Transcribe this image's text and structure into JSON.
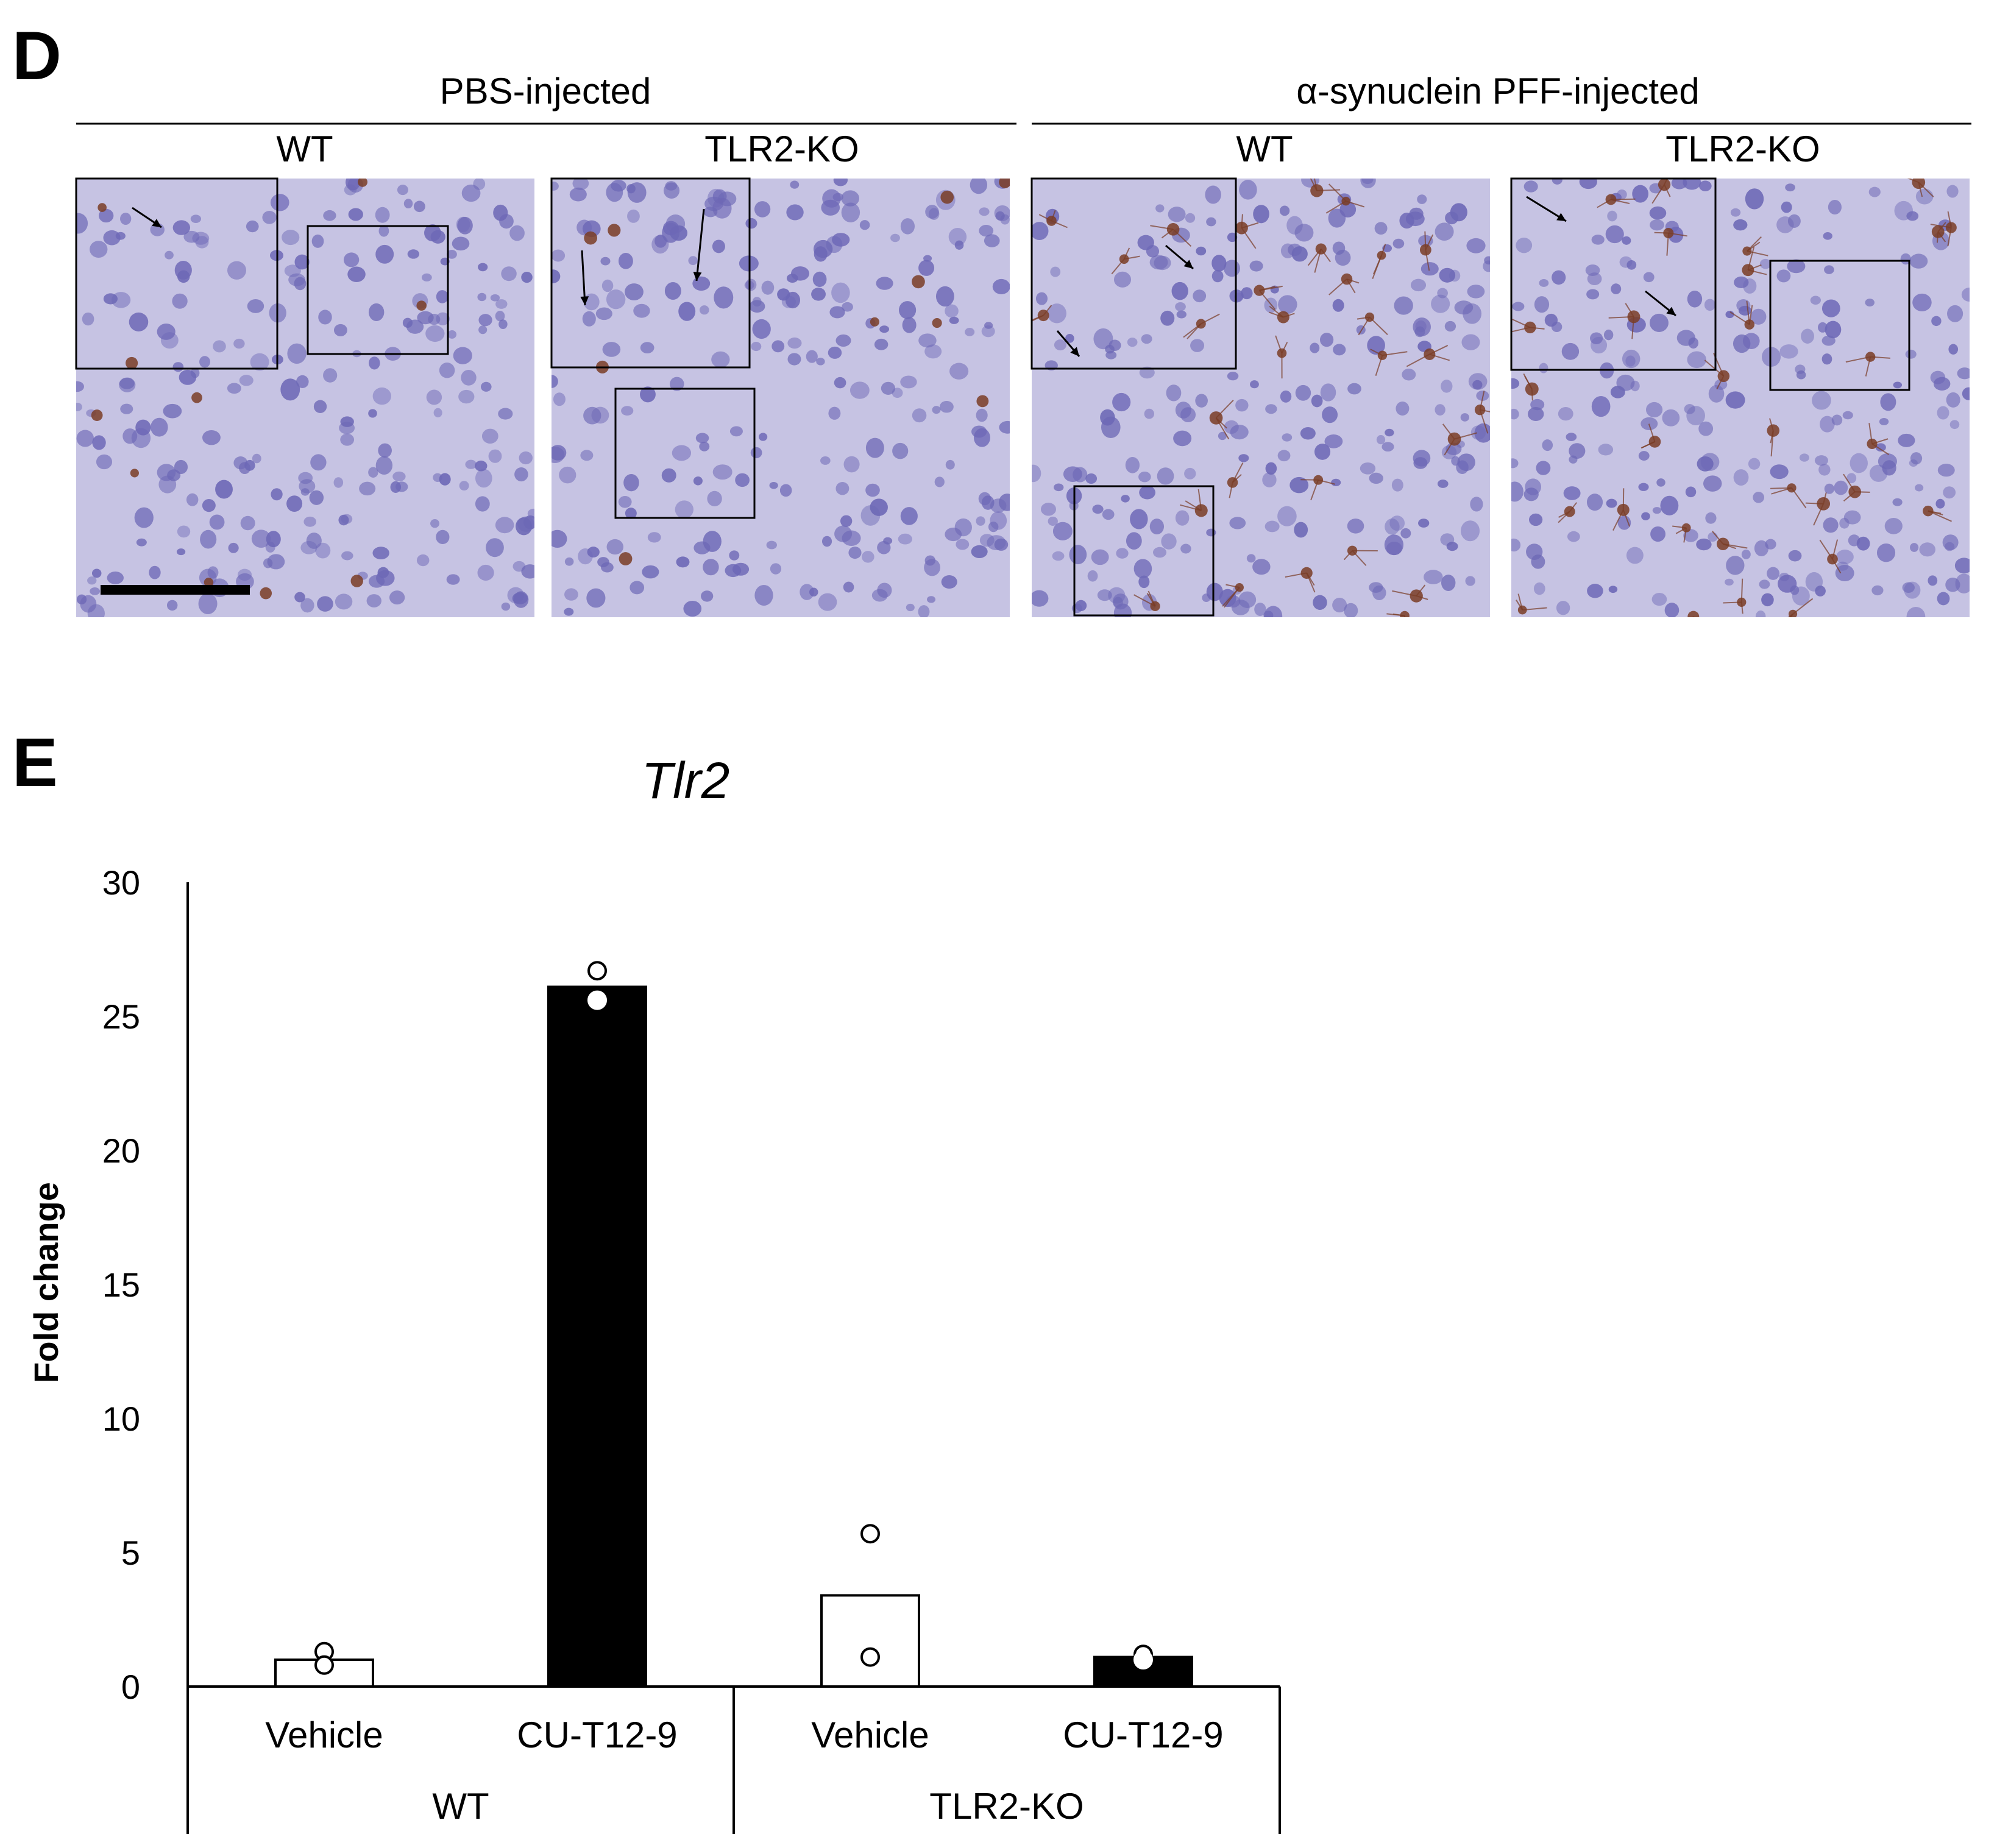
{
  "panel_d": {
    "letter": "D",
    "groups": [
      {
        "label": "PBS-injected",
        "columns": [
          "WT",
          "TLR2-KO"
        ]
      },
      {
        "label": "α-synuclein PFF-injected",
        "columns": [
          "WT",
          "TLR2-KO"
        ]
      }
    ],
    "colors": {
      "tissue": "#c6c3e3",
      "nucleus": "#6d68b6",
      "stain": "#7a3d26",
      "frame": "#000000"
    }
  },
  "panel_e": {
    "letter": "E"
  },
  "chart_data": {
    "type": "bar",
    "title": "Tlr2",
    "ylabel": "Fold change",
    "xlabel": "",
    "ylim": [
      0,
      30
    ],
    "yticks": [
      0,
      5,
      10,
      15,
      20,
      25,
      30
    ],
    "grid": false,
    "categories": [
      "Vehicle",
      "CU-T12-9",
      "Vehicle",
      "CU-T12-9"
    ],
    "groups": [
      {
        "label": "WT",
        "categories": [
          "Vehicle",
          "CU-T12-9"
        ]
      },
      {
        "label": "TLR2-KO",
        "categories": [
          "Vehicle",
          "CU-T12-9"
        ]
      }
    ],
    "values": [
      1.0,
      26.1,
      3.4,
      1.1
    ],
    "points": [
      [
        1.3,
        0.8
      ],
      [
        26.7,
        25.6
      ],
      [
        5.7,
        1.1
      ],
      [
        1.2,
        1.0
      ]
    ],
    "bar_colors": [
      "#ffffff",
      "#000000",
      "#ffffff",
      "#000000"
    ]
  }
}
